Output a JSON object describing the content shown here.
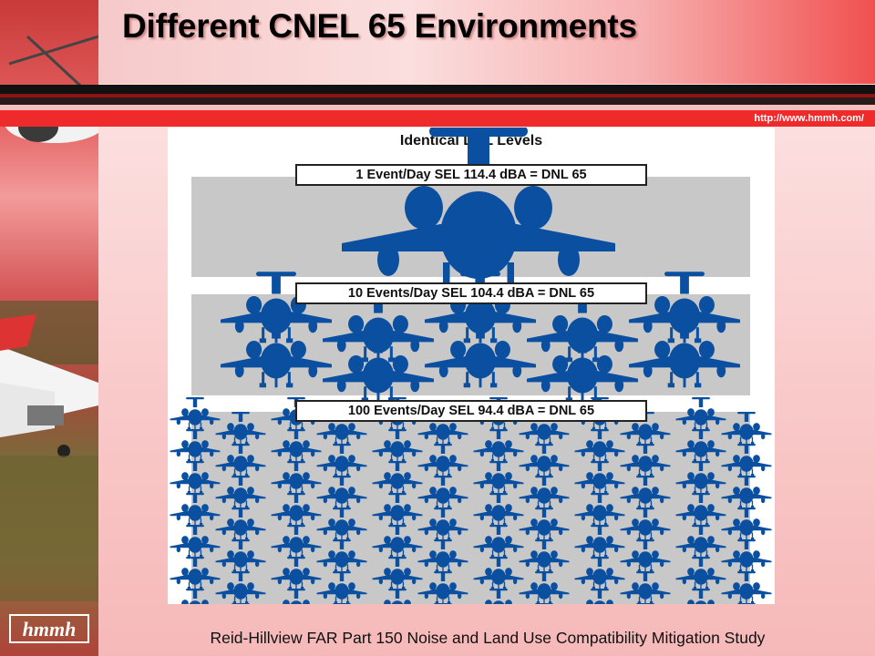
{
  "slide": {
    "title": "Different CNEL 65 Environments",
    "url": "http://www.hmmh.com/",
    "footer": "Reid-Hillview FAR Part 150 Noise and Land Use Compatibility Mitigation Study",
    "logo_text": "hmmh"
  },
  "figure": {
    "title": "Identical DNL Levels",
    "panels": [
      {
        "label": "1 Event/Day SEL 114.4 dBA = DNL 65"
      },
      {
        "label": "10 Events/Day SEL 104.4 dBA = DNL 65"
      },
      {
        "label": "100 Events/Day SEL 94.4 dBA = DNL 65"
      }
    ]
  },
  "colors": {
    "plane": "#0b4fa0",
    "panel": "#c8c8c8",
    "stripe_dark": "#1a1a1a",
    "stripe_red": "#cc1f1f"
  }
}
